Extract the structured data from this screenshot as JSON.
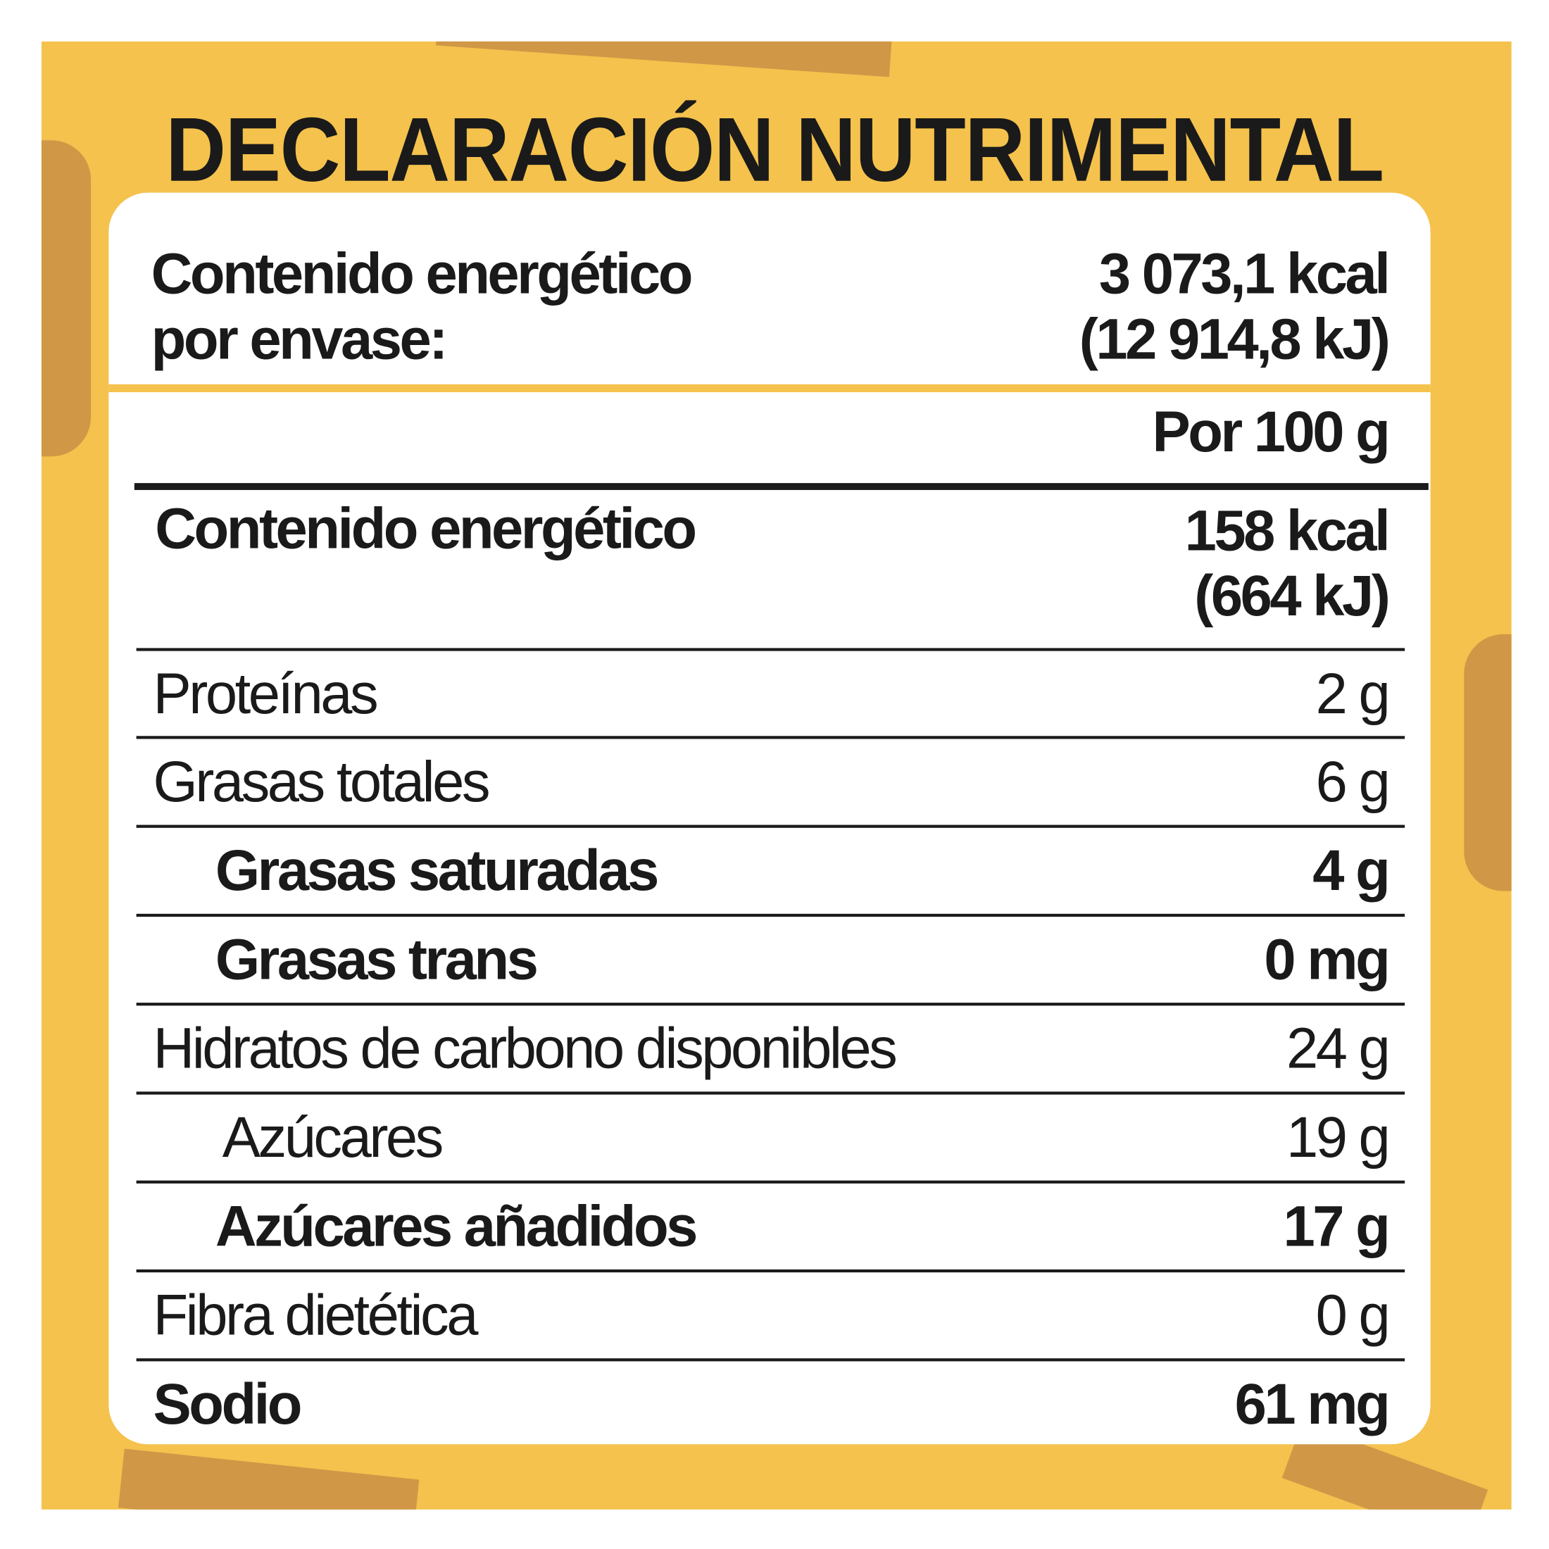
{
  "title": "DECLARACIÓN NUTRIMENTAL",
  "package_energy": {
    "label_lines": [
      "Contenido energético",
      "por envase:"
    ],
    "value_lines": [
      "3 073,1 kcal",
      "(12 914,8 kJ)"
    ]
  },
  "column_header": "Por 100 g",
  "energy": {
    "label": "Contenido energético",
    "value_lines": [
      "158 kcal",
      "(664 kJ)"
    ]
  },
  "rows": [
    {
      "label": "Proteínas",
      "value": "2 g"
    },
    {
      "label": "Grasas totales",
      "value": "6 g"
    },
    {
      "label": "Grasas saturadas",
      "value": "4 g"
    },
    {
      "label": "Grasas trans",
      "value": "0 mg"
    },
    {
      "label": "Hidratos de carbono disponibles",
      "value": "24 g"
    },
    {
      "label": "Azúcares",
      "value": "19 g"
    },
    {
      "label": "Azúcares añadidos",
      "value": "17 g"
    },
    {
      "label": "Fibra dietética",
      "value": "0 g"
    },
    {
      "label": "Sodio",
      "value": "61 mg"
    }
  ]
}
